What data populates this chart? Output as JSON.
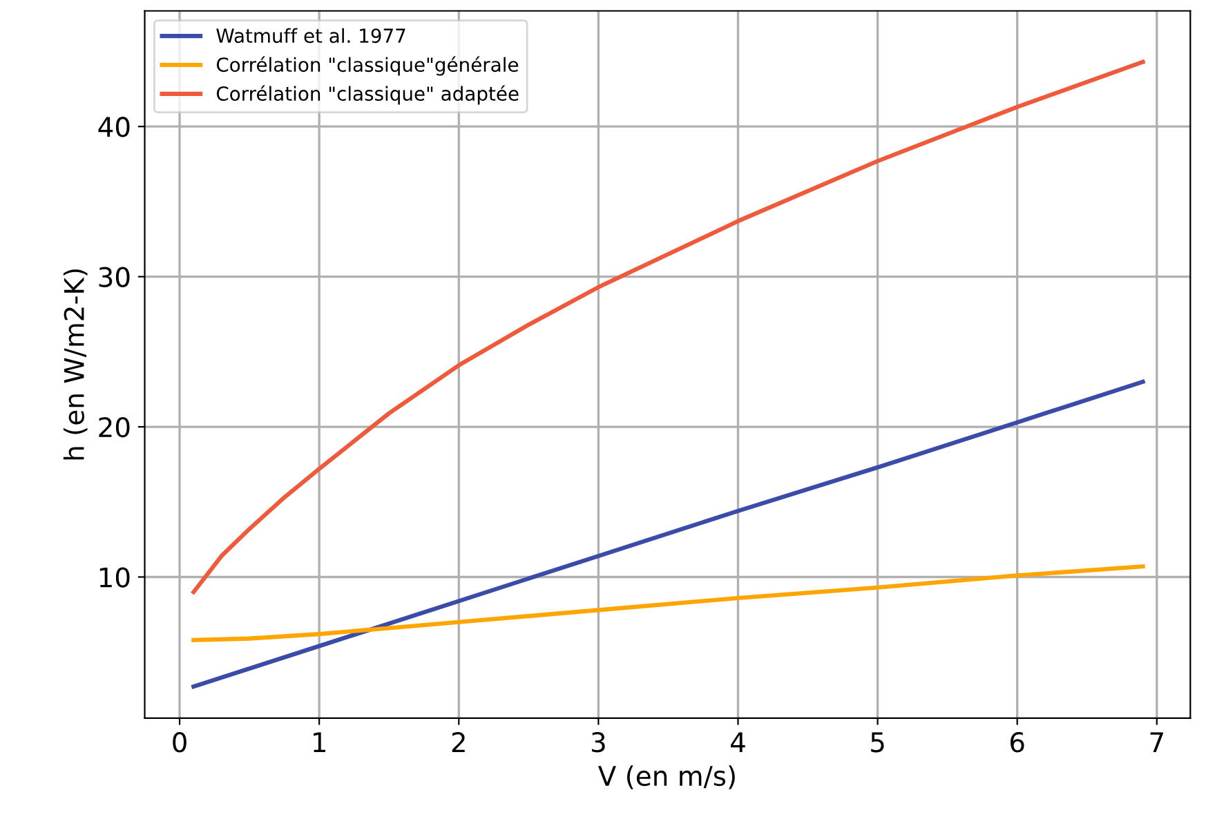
{
  "chart_data": {
    "type": "line",
    "xlabel": "V (en m/s)",
    "ylabel": "h (en W/m2-K)",
    "xlim": [
      -0.25,
      7.24
    ],
    "ylim": [
      0.6,
      47.7
    ],
    "xticks": [
      0,
      1,
      2,
      3,
      4,
      5,
      6,
      7
    ],
    "yticks": [
      10,
      20,
      30,
      40
    ],
    "grid": true,
    "legend": "top left",
    "series": [
      {
        "name": "Watmuff et al. 1977",
        "color": "#3a4ba8",
        "x": [
          0.1,
          1,
          2,
          3,
          4,
          5,
          6,
          6.9
        ],
        "values": [
          2.7,
          5.4,
          8.4,
          11.4,
          14.4,
          17.3,
          20.3,
          23.0
        ]
      },
      {
        "name": "Corrélation \"classique\"générale",
        "color": "#ffa500",
        "x": [
          0.1,
          0.5,
          1,
          1.5,
          2,
          3,
          4,
          5,
          6,
          6.9
        ],
        "values": [
          5.8,
          5.9,
          6.2,
          6.6,
          7.0,
          7.8,
          8.6,
          9.3,
          10.1,
          10.7
        ]
      },
      {
        "name": "Corrélation \"classique\" adaptée",
        "color": "#f05a3c",
        "x": [
          0.1,
          0.3,
          0.5,
          0.75,
          1,
          1.5,
          2,
          2.5,
          3,
          4,
          5,
          6,
          6.9
        ],
        "values": [
          9.0,
          11.4,
          13.2,
          15.3,
          17.2,
          20.9,
          24.1,
          26.8,
          29.3,
          33.7,
          37.7,
          41.3,
          44.3
        ]
      }
    ]
  }
}
